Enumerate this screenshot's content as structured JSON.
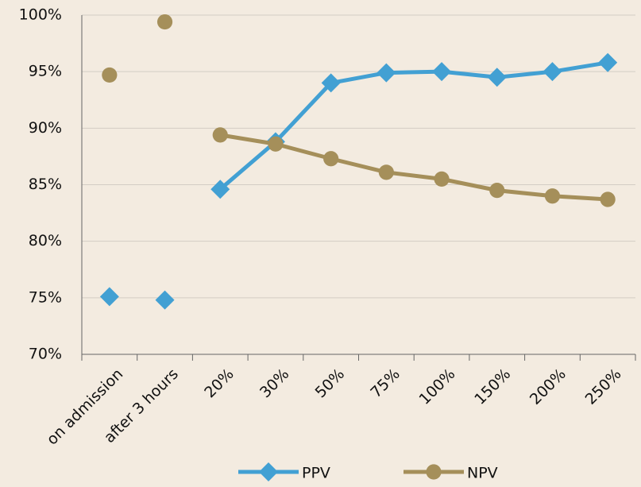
{
  "chart_data": {
    "type": "line",
    "categories": [
      "on admission",
      "after 3 hours",
      "20%",
      "30%",
      "50%",
      "75%",
      "100%",
      "150%",
      "200%",
      "250%"
    ],
    "connected": [
      false,
      false,
      true,
      true,
      true,
      true,
      true,
      true,
      true,
      true
    ],
    "series": [
      {
        "name": "PPV",
        "color": "#42a0d3",
        "marker": "diamond",
        "values": [
          75.1,
          74.8,
          84.6,
          88.8,
          94.0,
          94.9,
          95.0,
          94.5,
          95.0,
          95.8
        ]
      },
      {
        "name": "NPV",
        "color": "#a58f5a",
        "marker": "circle",
        "values": [
          94.7,
          99.4,
          89.4,
          88.6,
          87.3,
          86.1,
          85.5,
          84.5,
          84.0,
          83.7
        ]
      }
    ],
    "ylim": [
      70,
      100
    ],
    "yticks": [
      {
        "value": 70,
        "label": "70%"
      },
      {
        "value": 75,
        "label": "75%"
      },
      {
        "value": 80,
        "label": "80%"
      },
      {
        "value": 85,
        "label": "85%"
      },
      {
        "value": 90,
        "label": "90%"
      },
      {
        "value": 95,
        "label": "95%"
      },
      {
        "value": 100,
        "label": "100%"
      }
    ],
    "grid": true,
    "legend": "bottom"
  }
}
